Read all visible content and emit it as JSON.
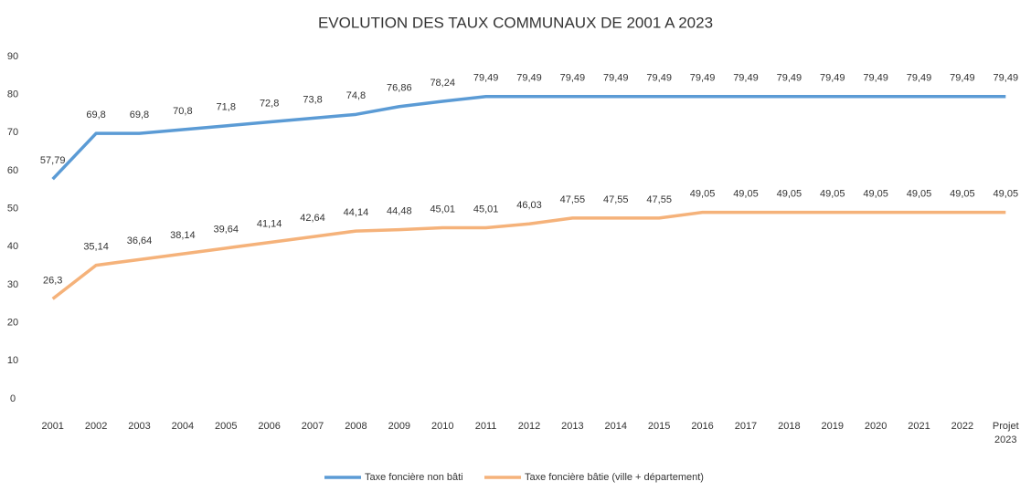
{
  "chart_data": {
    "type": "line",
    "title": "EVOLUTION DES TAUX COMMUNAUX DE 2001 A 2023",
    "categories": [
      "2001",
      "2002",
      "2003",
      "2004",
      "2005",
      "2006",
      "2007",
      "2008",
      "2009",
      "2010",
      "2011",
      "2012",
      "2013",
      "2014",
      "2015",
      "2016",
      "2017",
      "2018",
      "2019",
      "2020",
      "2021",
      "2022",
      "Projet 2023"
    ],
    "series": [
      {
        "name": "Taxe foncière non bâti",
        "color": "#5b9bd5",
        "values": [
          57.79,
          69.8,
          69.8,
          70.8,
          71.8,
          72.8,
          73.8,
          74.8,
          76.86,
          78.24,
          79.49,
          79.49,
          79.49,
          79.49,
          79.49,
          79.49,
          79.49,
          79.49,
          79.49,
          79.49,
          79.49,
          79.49,
          79.49
        ],
        "value_labels": [
          "57,79",
          "69,8",
          "69,8",
          "70,8",
          "71,8",
          "72,8",
          "73,8",
          "74,8",
          "76,86",
          "78,24",
          "79,49",
          "79,49",
          "79,49",
          "79,49",
          "79,49",
          "79,49",
          "79,49",
          "79,49",
          "79,49",
          "79,49",
          "79,49",
          "79,49",
          "79,49"
        ]
      },
      {
        "name": "Taxe foncière bâtie (ville + département)",
        "color": "#f5b27a",
        "values": [
          26.3,
          35.14,
          36.64,
          38.14,
          39.64,
          41.14,
          42.64,
          44.14,
          44.48,
          45.01,
          45.01,
          46.03,
          47.55,
          47.55,
          47.55,
          49.05,
          49.05,
          49.05,
          49.05,
          49.05,
          49.05,
          49.05,
          49.05
        ],
        "value_labels": [
          "26,3",
          "35,14",
          "36,64",
          "38,14",
          "39,64",
          "41,14",
          "42,64",
          "44,14",
          "44,48",
          "45,01",
          "45,01",
          "46,03",
          "47,55",
          "47,55",
          "47,55",
          "49,05",
          "49,05",
          "49,05",
          "49,05",
          "49,05",
          "49,05",
          "49,05",
          "49,05"
        ]
      }
    ],
    "ylim": [
      0,
      90
    ],
    "yticks": [
      0,
      10,
      20,
      30,
      40,
      50,
      60,
      70,
      80,
      90
    ],
    "grid": false,
    "legend": "bottom"
  }
}
